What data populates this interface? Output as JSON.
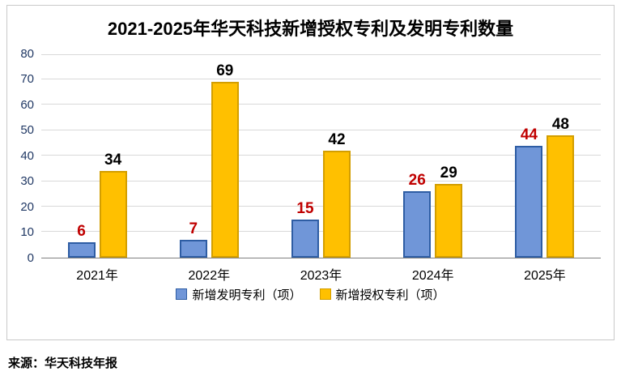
{
  "chart": {
    "title": "2021-2025年华天科技新增授权专利及发明专利数量",
    "source": "来源：华天科技年报"
  },
  "chart_data": {
    "type": "bar",
    "title": "2021-2025年华天科技新增授权专利及发明专利数量",
    "categories": [
      "2021年",
      "2022年",
      "2023年",
      "2024年",
      "2025年"
    ],
    "series": [
      {
        "name": "新增发明专利（项）",
        "values": [
          6,
          7,
          15,
          26,
          44
        ],
        "fill": "#7096d8",
        "stroke": "#2e5da4",
        "label_color": "#c00000"
      },
      {
        "name": "新增授权专利（项）",
        "values": [
          34,
          69,
          42,
          29,
          48
        ],
        "fill": "#ffc000",
        "stroke": "#d39e00",
        "label_color": "#000000"
      }
    ],
    "xlabel": "",
    "ylabel": "",
    "ylim": [
      0,
      80
    ],
    "yticks": [
      0,
      10,
      20,
      30,
      40,
      50,
      60,
      70,
      80
    ],
    "grid": true,
    "gridline_color": "#d9d9d9",
    "legend_position": "bottom",
    "source": "来源：华天科技年报"
  }
}
